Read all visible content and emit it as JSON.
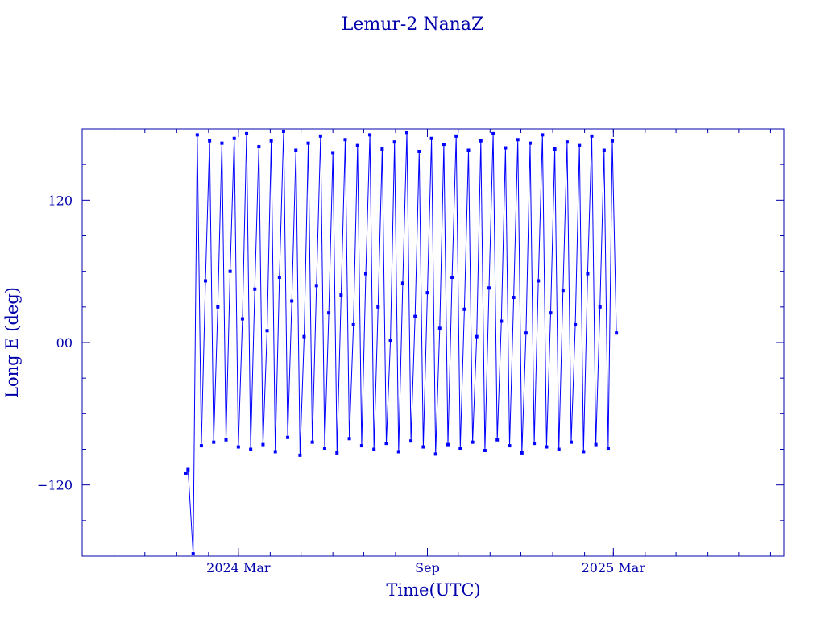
{
  "chart_data": {
    "type": "line",
    "title": "Lemur-2 NanaZ",
    "xlabel": "Time(UTC)",
    "ylabel": "Long E (deg)",
    "x_range": [
      "2023-10-01",
      "2025-08-14"
    ],
    "ylim": [
      -180,
      180
    ],
    "x_ticks": [
      {
        "date": "2024-03-01",
        "label": "2024 Mar"
      },
      {
        "date": "2024-09-01",
        "label": "Sep"
      },
      {
        "date": "2025-03-01",
        "label": "2025 Mar"
      }
    ],
    "y_ticks": [
      {
        "value": 120,
        "label": "120"
      },
      {
        "value": 0,
        "label": "00"
      },
      {
        "value": -120,
        "label": "−120"
      }
    ],
    "grid": false,
    "legend": "none",
    "series": [
      {
        "color": "#0000ff",
        "x": [
          "2024-01-10",
          "2024-01-12",
          "2024-01-17",
          "2024-01-21",
          "2024-01-25",
          "2024-01-29",
          "2024-02-02",
          "2024-02-06",
          "2024-02-10",
          "2024-02-14",
          "2024-02-18",
          "2024-02-22",
          "2024-02-26",
          "2024-03-01",
          "2024-03-05",
          "2024-03-09",
          "2024-03-13",
          "2024-03-17",
          "2024-03-21",
          "2024-03-25",
          "2024-03-29",
          "2024-04-02",
          "2024-04-06",
          "2024-04-10",
          "2024-04-14",
          "2024-04-18",
          "2024-04-22",
          "2024-04-26",
          "2024-04-30",
          "2024-05-04",
          "2024-05-08",
          "2024-05-12",
          "2024-05-16",
          "2024-05-20",
          "2024-05-24",
          "2024-05-28",
          "2024-06-01",
          "2024-06-05",
          "2024-06-09",
          "2024-06-13",
          "2024-06-17",
          "2024-06-21",
          "2024-06-25",
          "2024-06-29",
          "2024-07-03",
          "2024-07-07",
          "2024-07-11",
          "2024-07-15",
          "2024-07-19",
          "2024-07-23",
          "2024-07-27",
          "2024-07-31",
          "2024-08-04",
          "2024-08-08",
          "2024-08-12",
          "2024-08-16",
          "2024-08-20",
          "2024-08-24",
          "2024-08-28",
          "2024-09-01",
          "2024-09-05",
          "2024-09-09",
          "2024-09-13",
          "2024-09-17",
          "2024-09-21",
          "2024-09-25",
          "2024-09-29",
          "2024-10-03",
          "2024-10-07",
          "2024-10-11",
          "2024-10-15",
          "2024-10-19",
          "2024-10-23",
          "2024-10-27",
          "2024-10-31",
          "2024-11-04",
          "2024-11-08",
          "2024-11-12",
          "2024-11-16",
          "2024-11-20",
          "2024-11-24",
          "2024-11-28",
          "2024-12-02",
          "2024-12-06",
          "2024-12-10",
          "2024-12-14",
          "2024-12-18",
          "2024-12-22",
          "2024-12-26",
          "2024-12-30",
          "2025-01-03",
          "2025-01-07",
          "2025-01-11",
          "2025-01-15",
          "2025-01-19",
          "2025-01-23",
          "2025-01-27",
          "2025-01-31",
          "2025-02-04",
          "2025-02-08",
          "2025-02-12",
          "2025-02-16",
          "2025-02-20",
          "2025-02-24",
          "2025-02-28",
          "2025-03-04"
        ],
        "y": [
          -110,
          -107,
          -178,
          175,
          -87,
          52,
          170,
          -84,
          30,
          168,
          -82,
          60,
          172,
          -88,
          20,
          176,
          -90,
          45,
          165,
          -86,
          10,
          170,
          -92,
          55,
          178,
          -80,
          35,
          162,
          -95,
          5,
          168,
          -84,
          48,
          174,
          -89,
          25,
          160,
          -93,
          40,
          171,
          -81,
          15,
          166,
          -87,
          58,
          175,
          -90,
          30,
          163,
          -85,
          2,
          169,
          -92,
          50,
          177,
          -83,
          22,
          161,
          -88,
          42,
          172,
          -94,
          12,
          167,
          -86,
          55,
          174,
          -89,
          28,
          162,
          -84,
          5,
          170,
          -91,
          46,
          176,
          -82,
          18,
          164,
          -87,
          38,
          171,
          -93,
          8,
          168,
          -85,
          52,
          175,
          -88,
          25,
          163,
          -90,
          44,
          169,
          -84,
          15,
          166,
          -92,
          58,
          174,
          -86,
          30,
          162,
          -89,
          170,
          8
        ]
      }
    ]
  }
}
